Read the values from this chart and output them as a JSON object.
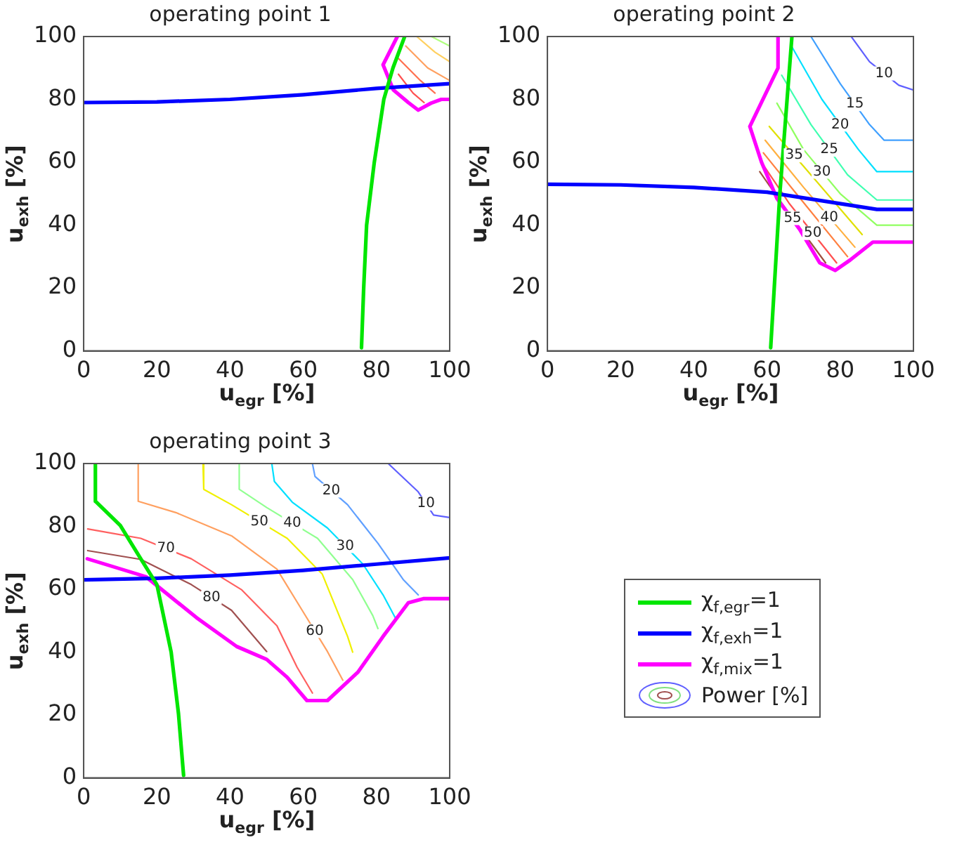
{
  "chart_data": [
    {
      "type": "line",
      "title": "operating point 1",
      "xlabel": "u$_{egr}$ [%]",
      "ylabel": "u$_{exh}$ [%]",
      "xlim": [
        0,
        100
      ],
      "ylim": [
        0,
        100
      ],
      "xticks": [
        0,
        20,
        40,
        60,
        80,
        100
      ],
      "yticks": [
        0,
        20,
        40,
        60,
        80,
        100
      ],
      "grid": false,
      "series": [
        {
          "color": "#00e600",
          "x": [
            75.9,
            76.5,
            77.3,
            79.4,
            82,
            84.5,
            87.7
          ],
          "values": [
            1,
            20,
            40,
            60,
            80,
            90,
            100
          ]
        },
        {
          "color": "#0000ff",
          "x": [
            0,
            20,
            40,
            60,
            80,
            100
          ],
          "values": [
            79,
            79.2,
            80,
            81.5,
            83.5,
            85
          ]
        },
        {
          "color": "#ff00ff",
          "x": [
            85.7,
            81.8,
            84.6,
            88.7,
            91.4,
            94.9,
            97.7,
            100
          ],
          "values": [
            100,
            91,
            83,
            79,
            76.6,
            78.8,
            80,
            80
          ]
        },
        {
          "color": "#b0ff80",
          "x": [
            95,
            100
          ],
          "values": [
            100,
            97
          ]
        },
        {
          "color": "#ffd060",
          "x": [
            91,
            96,
            100
          ],
          "values": [
            100,
            95,
            92
          ]
        },
        {
          "color": "#ffa060",
          "x": [
            88,
            94,
            100
          ],
          "values": [
            97,
            90,
            86
          ]
        },
        {
          "color": "#ff7050",
          "x": [
            86,
            92,
            96
          ],
          "values": [
            93,
            86,
            82
          ]
        },
        {
          "color": "#ff5050",
          "x": [
            86,
            90,
            93
          ],
          "values": [
            88,
            82,
            79
          ]
        }
      ]
    },
    {
      "type": "line",
      "title": "operating point 2",
      "xlabel": "u$_{egr}$ [%]",
      "ylabel": "u$_{exh}$ [%]",
      "xlim": [
        0,
        100
      ],
      "ylim": [
        0,
        100
      ],
      "xticks": [
        0,
        20,
        40,
        60,
        80,
        100
      ],
      "yticks": [
        0,
        20,
        40,
        60,
        80,
        100
      ],
      "grid": false,
      "series": [
        {
          "color": "#00e600",
          "x": [
            61,
            63.5,
            66.8
          ],
          "values": [
            1,
            50,
            100
          ]
        },
        {
          "color": "#0000ff",
          "x": [
            0,
            20,
            40,
            60,
            90,
            100
          ],
          "values": [
            53,
            52.8,
            52,
            50.5,
            45,
            45
          ]
        },
        {
          "color": "#ff00ff",
          "x": [
            63,
            63,
            55.3,
            58.5,
            62.7,
            68.9,
            74.4,
            78.6,
            82.7,
            88.9,
            100
          ],
          "values": [
            100,
            90,
            71.4,
            60,
            48.5,
            38.7,
            28,
            25.6,
            28.9,
            34.6,
            34.6
          ]
        },
        {
          "color": "#6060ff",
          "x": [
            83,
            88,
            96,
            100
          ],
          "values": [
            100,
            92,
            84.5,
            83
          ]
        },
        {
          "color": "#40a0ff",
          "x": [
            72,
            80,
            88,
            92,
            100
          ],
          "values": [
            100,
            85,
            72,
            67,
            67
          ]
        },
        {
          "color": "#00e0ff",
          "x": [
            66.8,
            75,
            85,
            90,
            100
          ],
          "values": [
            96.7,
            80,
            64,
            57,
            57
          ]
        },
        {
          "color": "#40ffb0",
          "x": [
            64,
            72,
            82,
            90,
            100
          ],
          "values": [
            87.7,
            72,
            56,
            48,
            48
          ]
        },
        {
          "color": "#90ff60",
          "x": [
            62.7,
            70,
            80,
            88,
            90,
            100
          ],
          "values": [
            78.8,
            64,
            50,
            42,
            40,
            40
          ]
        },
        {
          "color": "#e0e000",
          "x": [
            60.6,
            72,
            86
          ],
          "values": [
            71.4,
            56,
            37
          ]
        },
        {
          "color": "#ffb040",
          "x": [
            59.5,
            70,
            84
          ],
          "values": [
            67,
            52,
            33
          ]
        },
        {
          "color": "#ff8040",
          "x": [
            59,
            68,
            82
          ],
          "values": [
            63,
            50,
            30
          ]
        },
        {
          "color": "#ff5050",
          "x": [
            58.5,
            66,
            79
          ],
          "values": [
            60,
            47,
            28
          ]
        },
        {
          "color": "#a05040",
          "x": [
            58,
            64,
            76
          ],
          "values": [
            57,
            47,
            28
          ]
        }
      ],
      "annotations": [
        {
          "text": "10",
          "x": 92,
          "y": 88.25
        },
        {
          "text": "15",
          "x": 84,
          "y": 78.5
        },
        {
          "text": "20",
          "x": 80,
          "y": 72
        },
        {
          "text": "25",
          "x": 77,
          "y": 64
        },
        {
          "text": "30",
          "x": 75,
          "y": 57
        },
        {
          "text": "35",
          "x": 67.4,
          "y": 62.2
        },
        {
          "text": "40",
          "x": 77,
          "y": 42.5
        },
        {
          "text": "50",
          "x": 72.5,
          "y": 37.5
        },
        {
          "text": "55",
          "x": 67,
          "y": 42.25
        }
      ]
    },
    {
      "type": "line",
      "title": "operating point 3",
      "xlabel": "u$_{egr}$ [%]",
      "ylabel": "u$_{exh}$ [%]",
      "xlim": [
        0,
        100
      ],
      "ylim": [
        0,
        100
      ],
      "xticks": [
        0,
        20,
        40,
        60,
        80,
        100
      ],
      "yticks": [
        0,
        20,
        40,
        60,
        80,
        100
      ],
      "grid": false,
      "legend": "right",
      "series": [
        {
          "name": "χ$_{f,egr}$=1",
          "color": "#00e600",
          "x": [
            3.2,
            3.2,
            10,
            15.6,
            20,
            23.9,
            25.9,
            27.3
          ],
          "values": [
            100,
            88,
            80.3,
            69.7,
            61.5,
            40,
            20.5,
            0.8
          ]
        },
        {
          "name": "χ$_{f,exh}$=1",
          "color": "#0000ff",
          "x": [
            0,
            20,
            40,
            60,
            80,
            100
          ],
          "values": [
            63,
            63.5,
            64.5,
            66,
            68,
            70
          ]
        },
        {
          "name": "χ$_{f,mix}$=1",
          "color": "#ff00ff",
          "x": [
            1,
            17,
            30.8,
            41.8,
            50,
            55.6,
            61,
            66.6,
            74.9,
            81.8,
            88.7,
            92.8,
            100
          ],
          "values": [
            69.7,
            64,
            51,
            41.8,
            37.7,
            32,
            24.6,
            24.6,
            33.6,
            45,
            55.7,
            57,
            57
          ]
        },
        {
          "name": "Power [%]",
          "color": "#6060ff",
          "x": [
            83.2,
            91.4,
            95.6,
            100
          ],
          "values": [
            100,
            91,
            83.6,
            82.8
          ]
        },
        {
          "color": "#60a0ff",
          "x": [
            62.5,
            63.2,
            72.1,
            80.4,
            87.3,
            91.4
          ],
          "values": [
            100,
            95.9,
            86.9,
            74.6,
            63.1,
            58.2
          ]
        },
        {
          "color": "#00e0ff",
          "x": [
            51.4,
            52.1,
            57,
            66.6,
            76.3,
            81.8,
            85.2
          ],
          "values": [
            100,
            94.3,
            87.7,
            79.5,
            68,
            58.2,
            50.8
          ]
        },
        {
          "color": "#90ff90",
          "x": [
            42.5,
            42.5,
            50,
            63.9,
            73.5,
            79,
            80.4
          ],
          "values": [
            100,
            91.8,
            86,
            76.2,
            63.1,
            51.6,
            47.5
          ]
        },
        {
          "color": "#f0f000",
          "x": [
            32.6,
            32.8,
            40.4,
            55.6,
            65.2,
            72.1,
            73.5
          ],
          "values": [
            100,
            91.8,
            86.9,
            76.2,
            64.8,
            45,
            40
          ]
        },
        {
          "color": "#ffa060",
          "x": [
            14.9,
            14.9,
            25.2,
            40.4,
            52.8,
            59.7,
            66.6,
            70.8
          ],
          "values": [
            100,
            88,
            84.4,
            77,
            66.4,
            53.3,
            40.2,
            31.1
          ]
        },
        {
          "color": "#ff6060",
          "x": [
            1.1,
            15.6,
            29.4,
            43.2,
            52.8,
            58.3,
            62.5
          ],
          "values": [
            79.2,
            76.2,
            69.7,
            59.8,
            48.4,
            35.2,
            27
          ]
        },
        {
          "color": "#a05050",
          "x": [
            1.1,
            15.6,
            29.4,
            40.4,
            50
          ],
          "values": [
            72.3,
            69.5,
            61.5,
            53.3,
            40.2
          ]
        }
      ],
      "annotations": [
        {
          "text": "10",
          "x": 93.5,
          "y": 87.3
        },
        {
          "text": "20",
          "x": 67.65,
          "y": 91.4
        },
        {
          "text": "30",
          "x": 71.45,
          "y": 73.75
        },
        {
          "text": "40",
          "x": 57,
          "y": 81.1
        },
        {
          "text": "50",
          "x": 48,
          "y": 81.55
        },
        {
          "text": "60",
          "x": 63.15,
          "y": 46.75
        },
        {
          "text": "70",
          "x": 22.5,
          "y": 73
        },
        {
          "text": "80",
          "x": 34.9,
          "y": 57.4
        }
      ]
    }
  ]
}
